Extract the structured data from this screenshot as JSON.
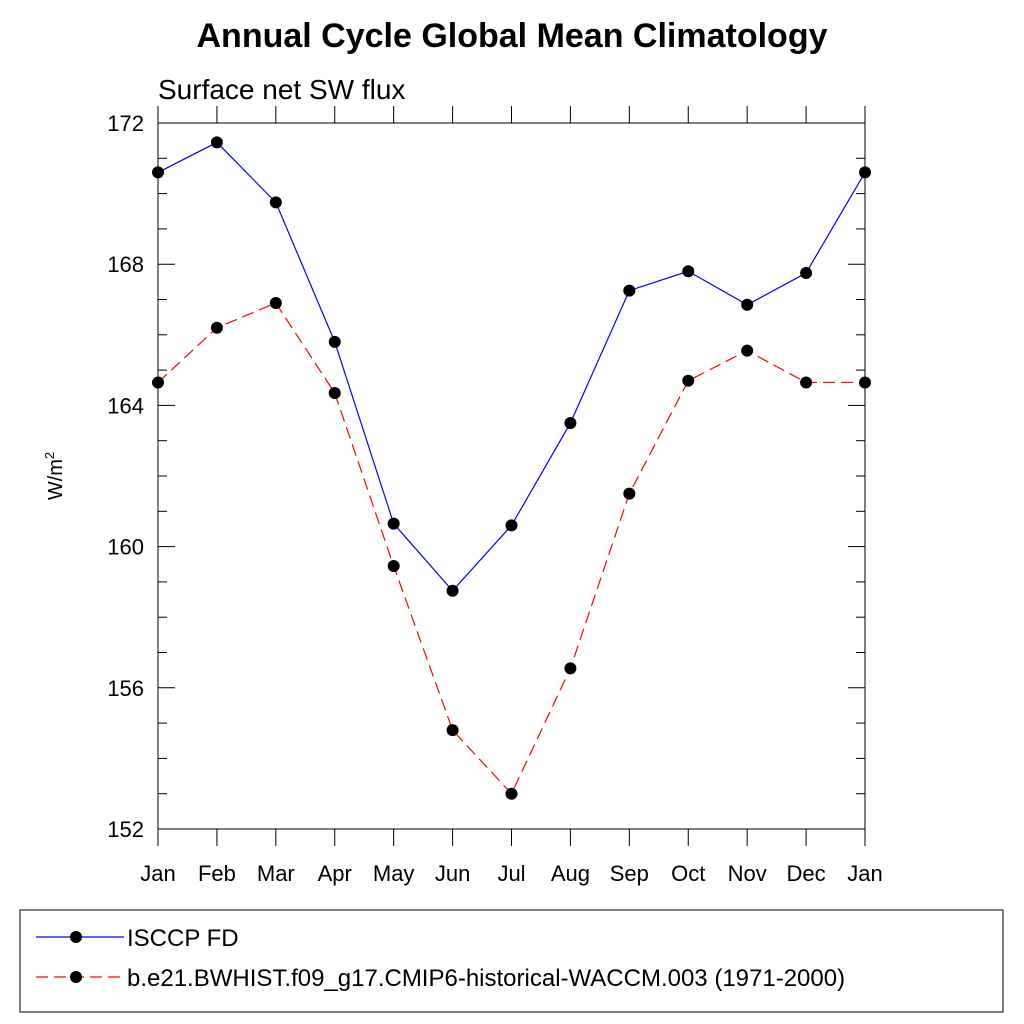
{
  "chart_data": {
    "type": "line",
    "title": "Annual Cycle Global Mean Climatology",
    "subtitle": "Surface net SW flux",
    "ylabel": "W/m",
    "ylabel_superscript": "2",
    "xlabel": "",
    "categories": [
      "Jan",
      "Feb",
      "Mar",
      "Apr",
      "May",
      "Jun",
      "Jul",
      "Aug",
      "Sep",
      "Oct",
      "Nov",
      "Dec",
      "Jan"
    ],
    "ylim": [
      152,
      172
    ],
    "yticks": [
      "152",
      "156",
      "160",
      "164",
      "168",
      "172"
    ],
    "grid": false,
    "legend_position": "bottom",
    "series": [
      {
        "name": "ISCCP FD",
        "color": "#0000ff",
        "dash": "solid",
        "marker": "filled-circle",
        "values": [
          170.6,
          171.45,
          169.75,
          165.8,
          160.65,
          158.75,
          160.6,
          163.5,
          167.25,
          167.8,
          166.85,
          167.75,
          170.6
        ]
      },
      {
        "name": "b.e21.BWHIST.f09_g17.CMIP6-historical-WACCM.003 (1971-2000)",
        "color": "#ff0000",
        "dash": "dashed",
        "marker": "filled-circle",
        "values": [
          164.65,
          166.2,
          166.9,
          164.35,
          159.45,
          154.8,
          153.0,
          156.55,
          161.5,
          164.7,
          165.55,
          164.65,
          164.65
        ]
      }
    ]
  }
}
